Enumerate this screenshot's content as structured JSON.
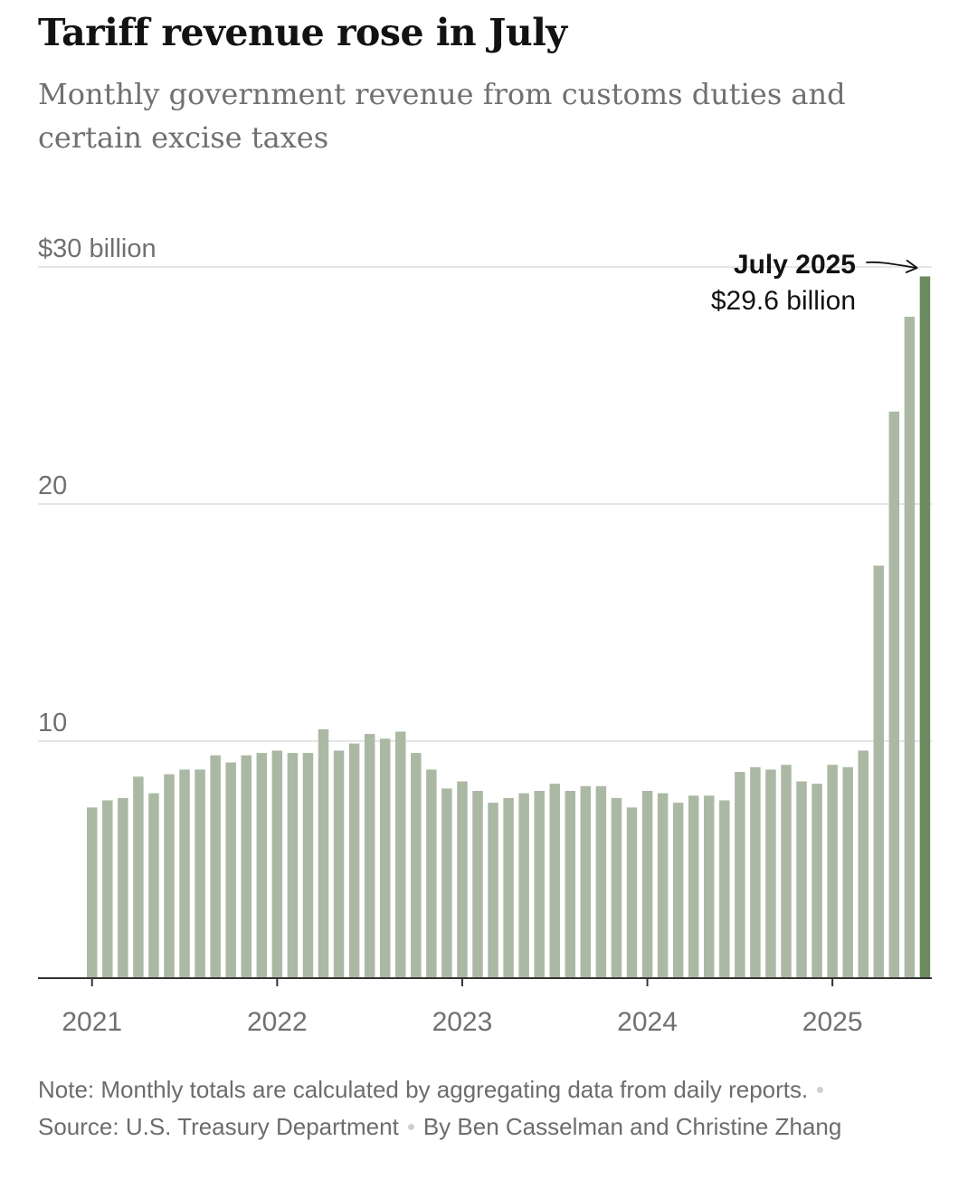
{
  "header": {
    "title": "Tariff revenue rose in July",
    "subtitle": "Monthly government revenue from customs duties and certain excise taxes"
  },
  "footer": {
    "note": "Note: Monthly totals are calculated by aggregating data from daily reports.",
    "source": "Source: U.S. Treasury Department",
    "byline": "By Ben Casselman and Christine Zhang"
  },
  "chart_data": {
    "type": "bar",
    "title": "Tariff revenue rose in July",
    "subtitle": "Monthly government revenue from customs duties and certain excise taxes",
    "xlabel": "",
    "ylabel": "",
    "ylim": [
      0,
      30
    ],
    "yticks": [
      {
        "value": 30,
        "label": "$30 billion"
      },
      {
        "value": 20,
        "label": "20"
      },
      {
        "value": 10,
        "label": "10"
      }
    ],
    "x_tick_labels": [
      {
        "index": 0,
        "label": "2021"
      },
      {
        "index": 12,
        "label": "2022"
      },
      {
        "index": 24,
        "label": "2023"
      },
      {
        "index": 36,
        "label": "2024"
      },
      {
        "index": 48,
        "label": "2025"
      }
    ],
    "grid": true,
    "categories": [
      "2021-01",
      "2021-02",
      "2021-03",
      "2021-04",
      "2021-05",
      "2021-06",
      "2021-07",
      "2021-08",
      "2021-09",
      "2021-10",
      "2021-11",
      "2021-12",
      "2022-01",
      "2022-02",
      "2022-03",
      "2022-04",
      "2022-05",
      "2022-06",
      "2022-07",
      "2022-08",
      "2022-09",
      "2022-10",
      "2022-11",
      "2022-12",
      "2023-01",
      "2023-02",
      "2023-03",
      "2023-04",
      "2023-05",
      "2023-06",
      "2023-07",
      "2023-08",
      "2023-09",
      "2023-10",
      "2023-11",
      "2023-12",
      "2024-01",
      "2024-02",
      "2024-03",
      "2024-04",
      "2024-05",
      "2024-06",
      "2024-07",
      "2024-08",
      "2024-09",
      "2024-10",
      "2024-11",
      "2024-12",
      "2025-01",
      "2025-02",
      "2025-03",
      "2025-04",
      "2025-05",
      "2025-06",
      "2025-07"
    ],
    "values": [
      7.2,
      7.5,
      7.6,
      8.5,
      7.8,
      8.6,
      8.8,
      8.8,
      9.4,
      9.1,
      9.4,
      9.5,
      9.6,
      9.5,
      9.5,
      10.5,
      9.6,
      9.9,
      10.3,
      10.1,
      10.4,
      9.5,
      8.8,
      8.0,
      8.3,
      7.9,
      7.4,
      7.6,
      7.8,
      7.9,
      8.2,
      7.9,
      8.1,
      8.1,
      7.6,
      7.2,
      7.9,
      7.8,
      7.4,
      7.7,
      7.7,
      7.5,
      8.7,
      8.9,
      8.8,
      9.0,
      8.3,
      8.2,
      9.0,
      8.9,
      9.6,
      17.4,
      23.9,
      27.9,
      29.6
    ],
    "colors": {
      "bar": "#abb9a4",
      "highlight": "#6b8a60",
      "grid": "#dedede",
      "axis": "#333333",
      "tick_text": "#707070"
    },
    "annotation": {
      "index": 54,
      "label": "July 2025",
      "value_label": "$29.6 billion"
    }
  }
}
